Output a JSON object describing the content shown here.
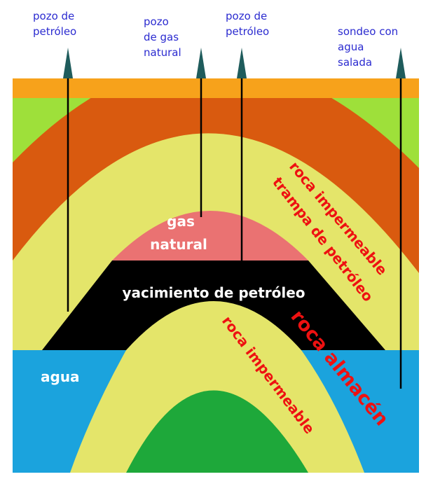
{
  "wells": [
    {
      "lines": [
        "pozo de",
        "petróleo"
      ]
    },
    {
      "lines": [
        "pozo",
        "de gas",
        "natural"
      ]
    },
    {
      "lines": [
        "pozo de",
        "petróleo"
      ]
    },
    {
      "lines": [
        "sondeo con",
        "agua",
        "salada"
      ]
    }
  ],
  "layers": {
    "gas": [
      "gas",
      "natural"
    ],
    "oil": "yacimiento de petróleo",
    "water": "agua",
    "seal_upper": "roca impermeable",
    "trap": "trampa de petróleo",
    "reservoir": "roca almacén",
    "seal_lower": "roca impermeable"
  }
}
